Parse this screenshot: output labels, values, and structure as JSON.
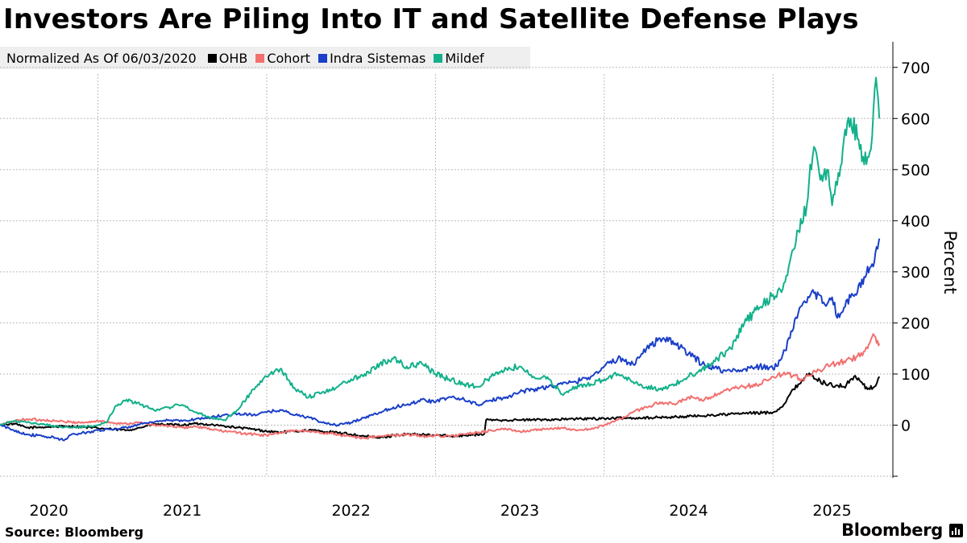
{
  "chart_data": {
    "type": "line",
    "title": "Investors Are Piling Into IT and Satellite Defense Plays",
    "legend_lead": "Normalized As Of 06/03/2020",
    "ylabel": "Percent",
    "ylim": [
      -100,
      750
    ],
    "yticks": [
      0,
      100,
      200,
      300,
      400,
      500,
      600,
      700
    ],
    "ytick_labels": [
      "0",
      "100",
      "200",
      "300",
      "400",
      "500",
      "600",
      "700"
    ],
    "xlim": [
      2020.42,
      2025.71
    ],
    "x_gridlines": [
      2021.0,
      2022.0,
      2023.0,
      2024.0,
      2025.0
    ],
    "x_ticklabels": [
      {
        "label": "2020",
        "x": 2020.71
      },
      {
        "label": "2021",
        "x": 2021.5
      },
      {
        "label": "2022",
        "x": 2022.5
      },
      {
        "label": "2023",
        "x": 2023.5
      },
      {
        "label": "2024",
        "x": 2024.5
      },
      {
        "label": "2025",
        "x": 2025.35
      }
    ],
    "x_note": "x values are decimal years",
    "series": [
      {
        "name": "OHB",
        "color": "#000000",
        "points": [
          [
            2020.42,
            0
          ],
          [
            2020.5,
            3
          ],
          [
            2020.58,
            -5
          ],
          [
            2020.67,
            -4
          ],
          [
            2020.75,
            -3
          ],
          [
            2020.83,
            -2
          ],
          [
            2020.92,
            -4
          ],
          [
            2021.0,
            -6
          ],
          [
            2021.08,
            -8
          ],
          [
            2021.17,
            -10
          ],
          [
            2021.25,
            -5
          ],
          [
            2021.33,
            2
          ],
          [
            2021.42,
            1
          ],
          [
            2021.5,
            0
          ],
          [
            2021.58,
            3
          ],
          [
            2021.67,
            1
          ],
          [
            2021.75,
            -2
          ],
          [
            2021.83,
            -5
          ],
          [
            2021.92,
            -8
          ],
          [
            2022.0,
            -12
          ],
          [
            2022.08,
            -14
          ],
          [
            2022.17,
            -12
          ],
          [
            2022.25,
            -10
          ],
          [
            2022.33,
            -12
          ],
          [
            2022.42,
            -15
          ],
          [
            2022.5,
            -18
          ],
          [
            2022.58,
            -22
          ],
          [
            2022.67,
            -25
          ],
          [
            2022.75,
            -20
          ],
          [
            2022.83,
            -18
          ],
          [
            2022.92,
            -19
          ],
          [
            2023.0,
            -20
          ],
          [
            2023.08,
            -21
          ],
          [
            2023.17,
            -20
          ],
          [
            2023.25,
            -19
          ],
          [
            2023.29,
            -17
          ],
          [
            2023.3,
            10
          ],
          [
            2023.42,
            10
          ],
          [
            2023.5,
            10
          ],
          [
            2023.67,
            11
          ],
          [
            2023.83,
            12
          ],
          [
            2024.0,
            13
          ],
          [
            2024.17,
            14
          ],
          [
            2024.33,
            15
          ],
          [
            2024.5,
            17
          ],
          [
            2024.67,
            20
          ],
          [
            2024.83,
            23
          ],
          [
            2025.0,
            25
          ],
          [
            2025.05,
            35
          ],
          [
            2025.1,
            60
          ],
          [
            2025.15,
            80
          ],
          [
            2025.2,
            100
          ],
          [
            2025.25,
            90
          ],
          [
            2025.33,
            80
          ],
          [
            2025.42,
            75
          ],
          [
            2025.48,
            95
          ],
          [
            2025.52,
            85
          ],
          [
            2025.56,
            70
          ],
          [
            2025.6,
            75
          ],
          [
            2025.63,
            95
          ]
        ]
      },
      {
        "name": "Cohort",
        "color": "#f27070",
        "points": [
          [
            2020.42,
            0
          ],
          [
            2020.5,
            8
          ],
          [
            2020.58,
            12
          ],
          [
            2020.67,
            10
          ],
          [
            2020.75,
            8
          ],
          [
            2020.83,
            6
          ],
          [
            2020.92,
            5
          ],
          [
            2021.0,
            8
          ],
          [
            2021.08,
            5
          ],
          [
            2021.17,
            3
          ],
          [
            2021.25,
            5
          ],
          [
            2021.33,
            0
          ],
          [
            2021.42,
            -2
          ],
          [
            2021.5,
            -5
          ],
          [
            2021.58,
            -3
          ],
          [
            2021.67,
            -8
          ],
          [
            2021.75,
            -12
          ],
          [
            2021.83,
            -15
          ],
          [
            2021.92,
            -18
          ],
          [
            2022.0,
            -20
          ],
          [
            2022.08,
            -15
          ],
          [
            2022.17,
            -10
          ],
          [
            2022.25,
            -12
          ],
          [
            2022.33,
            -15
          ],
          [
            2022.42,
            -18
          ],
          [
            2022.5,
            -22
          ],
          [
            2022.58,
            -25
          ],
          [
            2022.67,
            -22
          ],
          [
            2022.75,
            -20
          ],
          [
            2022.83,
            -18
          ],
          [
            2022.92,
            -22
          ],
          [
            2023.0,
            -20
          ],
          [
            2023.08,
            -22
          ],
          [
            2023.17,
            -18
          ],
          [
            2023.25,
            -15
          ],
          [
            2023.33,
            -10
          ],
          [
            2023.42,
            -8
          ],
          [
            2023.5,
            -12
          ],
          [
            2023.58,
            -10
          ],
          [
            2023.67,
            -8
          ],
          [
            2023.75,
            -5
          ],
          [
            2023.83,
            -10
          ],
          [
            2023.92,
            -8
          ],
          [
            2024.0,
            0
          ],
          [
            2024.08,
            10
          ],
          [
            2024.17,
            25
          ],
          [
            2024.25,
            35
          ],
          [
            2024.33,
            45
          ],
          [
            2024.42,
            40
          ],
          [
            2024.5,
            55
          ],
          [
            2024.58,
            48
          ],
          [
            2024.67,
            60
          ],
          [
            2024.75,
            70
          ],
          [
            2024.83,
            75
          ],
          [
            2024.92,
            80
          ],
          [
            2025.0,
            95
          ],
          [
            2025.08,
            100
          ],
          [
            2025.17,
            90
          ],
          [
            2025.25,
            105
          ],
          [
            2025.33,
            115
          ],
          [
            2025.42,
            125
          ],
          [
            2025.5,
            135
          ],
          [
            2025.56,
            150
          ],
          [
            2025.6,
            175
          ],
          [
            2025.62,
            165
          ],
          [
            2025.63,
            160
          ]
        ]
      },
      {
        "name": "Indra Sistemas",
        "color": "#1a3fc8",
        "points": [
          [
            2020.42,
            0
          ],
          [
            2020.5,
            -10
          ],
          [
            2020.58,
            -18
          ],
          [
            2020.67,
            -22
          ],
          [
            2020.75,
            -25
          ],
          [
            2020.8,
            -30
          ],
          [
            2020.83,
            -20
          ],
          [
            2020.92,
            -15
          ],
          [
            2021.0,
            -10
          ],
          [
            2021.08,
            -8
          ],
          [
            2021.17,
            -5
          ],
          [
            2021.25,
            2
          ],
          [
            2021.33,
            5
          ],
          [
            2021.42,
            10
          ],
          [
            2021.5,
            8
          ],
          [
            2021.58,
            12
          ],
          [
            2021.67,
            15
          ],
          [
            2021.75,
            20
          ],
          [
            2021.83,
            22
          ],
          [
            2021.92,
            20
          ],
          [
            2022.0,
            25
          ],
          [
            2022.08,
            30
          ],
          [
            2022.17,
            20
          ],
          [
            2022.25,
            15
          ],
          [
            2022.33,
            5
          ],
          [
            2022.42,
            0
          ],
          [
            2022.5,
            5
          ],
          [
            2022.58,
            15
          ],
          [
            2022.67,
            25
          ],
          [
            2022.75,
            35
          ],
          [
            2022.83,
            40
          ],
          [
            2022.92,
            50
          ],
          [
            2023.0,
            45
          ],
          [
            2023.08,
            55
          ],
          [
            2023.17,
            50
          ],
          [
            2023.25,
            40
          ],
          [
            2023.33,
            48
          ],
          [
            2023.42,
            55
          ],
          [
            2023.5,
            65
          ],
          [
            2023.58,
            70
          ],
          [
            2023.67,
            75
          ],
          [
            2023.75,
            80
          ],
          [
            2023.83,
            85
          ],
          [
            2023.92,
            95
          ],
          [
            2024.0,
            115
          ],
          [
            2024.08,
            130
          ],
          [
            2024.17,
            120
          ],
          [
            2024.25,
            150
          ],
          [
            2024.33,
            170
          ],
          [
            2024.42,
            160
          ],
          [
            2024.5,
            140
          ],
          [
            2024.58,
            120
          ],
          [
            2024.67,
            110
          ],
          [
            2024.75,
            105
          ],
          [
            2024.83,
            110
          ],
          [
            2024.92,
            115
          ],
          [
            2025.0,
            110
          ],
          [
            2025.05,
            130
          ],
          [
            2025.1,
            170
          ],
          [
            2025.15,
            220
          ],
          [
            2025.2,
            240
          ],
          [
            2025.25,
            260
          ],
          [
            2025.3,
            240
          ],
          [
            2025.35,
            250
          ],
          [
            2025.38,
            210
          ],
          [
            2025.42,
            230
          ],
          [
            2025.46,
            250
          ],
          [
            2025.5,
            260
          ],
          [
            2025.54,
            290
          ],
          [
            2025.58,
            310
          ],
          [
            2025.62,
            345
          ],
          [
            2025.63,
            365
          ]
        ]
      },
      {
        "name": "Mildef",
        "color": "#12b08a",
        "points": [
          [
            2020.42,
            0
          ],
          [
            2020.5,
            8
          ],
          [
            2020.58,
            5
          ],
          [
            2020.67,
            2
          ],
          [
            2020.75,
            -2
          ],
          [
            2020.83,
            -5
          ],
          [
            2020.92,
            -3
          ],
          [
            2021.0,
            0
          ],
          [
            2021.05,
            5
          ],
          [
            2021.1,
            35
          ],
          [
            2021.17,
            50
          ],
          [
            2021.25,
            40
          ],
          [
            2021.33,
            30
          ],
          [
            2021.42,
            35
          ],
          [
            2021.5,
            40
          ],
          [
            2021.58,
            25
          ],
          [
            2021.67,
            15
          ],
          [
            2021.75,
            10
          ],
          [
            2021.83,
            30
          ],
          [
            2021.92,
            70
          ],
          [
            2022.0,
            95
          ],
          [
            2022.08,
            110
          ],
          [
            2022.17,
            70
          ],
          [
            2022.25,
            55
          ],
          [
            2022.33,
            65
          ],
          [
            2022.42,
            75
          ],
          [
            2022.5,
            90
          ],
          [
            2022.58,
            100
          ],
          [
            2022.67,
            120
          ],
          [
            2022.75,
            130
          ],
          [
            2022.83,
            115
          ],
          [
            2022.92,
            120
          ],
          [
            2023.0,
            100
          ],
          [
            2023.08,
            90
          ],
          [
            2023.17,
            80
          ],
          [
            2023.25,
            75
          ],
          [
            2023.33,
            95
          ],
          [
            2023.42,
            110
          ],
          [
            2023.5,
            115
          ],
          [
            2023.58,
            95
          ],
          [
            2023.67,
            90
          ],
          [
            2023.75,
            60
          ],
          [
            2023.83,
            75
          ],
          [
            2023.92,
            80
          ],
          [
            2024.0,
            90
          ],
          [
            2024.08,
            100
          ],
          [
            2024.17,
            85
          ],
          [
            2024.25,
            75
          ],
          [
            2024.33,
            70
          ],
          [
            2024.42,
            80
          ],
          [
            2024.5,
            95
          ],
          [
            2024.58,
            110
          ],
          [
            2024.67,
            130
          ],
          [
            2024.75,
            150
          ],
          [
            2024.83,
            200
          ],
          [
            2024.92,
            230
          ],
          [
            2025.0,
            255
          ],
          [
            2025.05,
            260
          ],
          [
            2025.1,
            320
          ],
          [
            2025.15,
            380
          ],
          [
            2025.2,
            430
          ],
          [
            2025.22,
            510
          ],
          [
            2025.25,
            540
          ],
          [
            2025.28,
            480
          ],
          [
            2025.32,
            500
          ],
          [
            2025.35,
            430
          ],
          [
            2025.38,
            470
          ],
          [
            2025.42,
            560
          ],
          [
            2025.46,
            600
          ],
          [
            2025.5,
            560
          ],
          [
            2025.54,
            510
          ],
          [
            2025.58,
            540
          ],
          [
            2025.61,
            680
          ],
          [
            2025.63,
            600
          ]
        ]
      }
    ],
    "source": "Source: Bloomberg",
    "brand": "Bloomberg"
  },
  "colors": {
    "grid": "#bbbbbb",
    "axis": "#000000",
    "legend_bg": "#efefef"
  }
}
